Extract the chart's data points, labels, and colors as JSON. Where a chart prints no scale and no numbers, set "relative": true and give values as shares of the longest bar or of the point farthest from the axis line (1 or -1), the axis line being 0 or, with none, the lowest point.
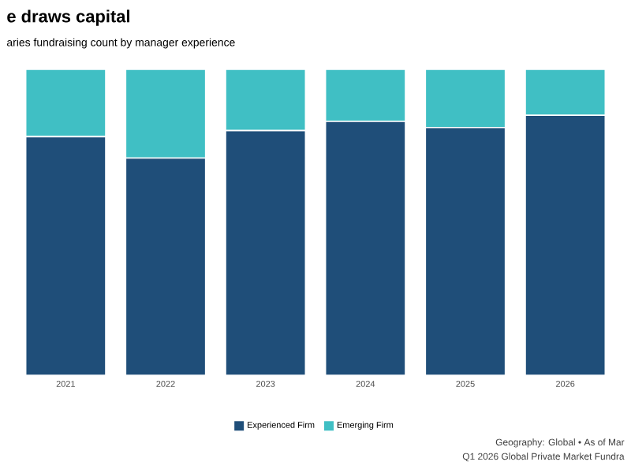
{
  "chart_data": {
    "type": "bar",
    "title": "e draws capital",
    "subtitle": "aries fundraising count by manager experience",
    "categories": [
      "2021",
      "2022",
      "2023",
      "2024",
      "2025",
      "2026"
    ],
    "series": [
      {
        "name": "Experienced Firm",
        "color": "#1f4e79",
        "values": [
          0.78,
          0.71,
          0.8,
          0.83,
          0.81,
          0.85
        ]
      },
      {
        "name": "Emerging Firm",
        "color": "#40bfc4",
        "values": [
          0.22,
          0.29,
          0.2,
          0.17,
          0.19,
          0.15
        ]
      }
    ],
    "stacked": true,
    "relative": true,
    "legend": "bottom",
    "annotations": [
      "Geography: Global • As of Mar",
      "Q1 2026 Global Private Market Fundra"
    ]
  }
}
